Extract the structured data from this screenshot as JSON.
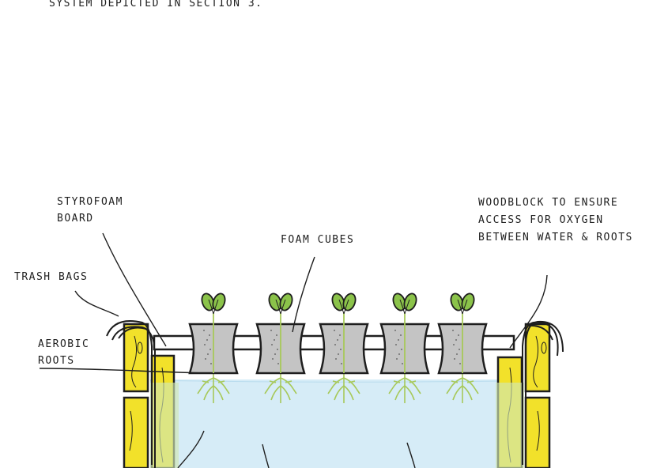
{
  "caption": "SYSTEM DEPICTED IN SECTION 3.",
  "labels": {
    "styrofoam_line1": "STYROFOAM",
    "styrofoam_line2": "BOARD",
    "foam_cubes": "FOAM CUBES",
    "trash_bags": "TRASH BAGS",
    "aerobic_line1": "AEROBIC",
    "aerobic_line2": "ROOTS",
    "woodblock_line1": "WOODBLOCK TO ENSURE",
    "woodblock_line2": "ACCESS FOR OXYGEN",
    "woodblock_line3": "BETWEEN WATER & ROOTS"
  },
  "plant_count": 5,
  "colors": {
    "wood": "#f2e12a",
    "water": "#d6ecf7",
    "foam": "#c4c4c4",
    "leaf": "#8bc34a",
    "root": "#a7c95a",
    "bag_overlay": "#cfe6b4"
  }
}
